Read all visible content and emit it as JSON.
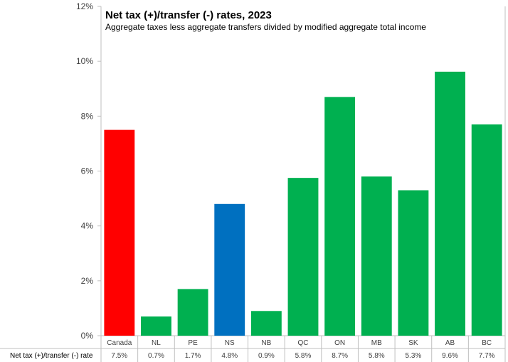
{
  "chart_data": {
    "type": "bar",
    "title": "Net tax (+)/transfer (-) rates, 2023",
    "subtitle": "Aggregate taxes less aggregate transfers divided by modified aggregate total income",
    "categories": [
      "Canada",
      "NL",
      "PE",
      "NS",
      "NB",
      "QC",
      "ON",
      "MB",
      "SK",
      "AB",
      "BC"
    ],
    "values": [
      7.5,
      0.7,
      1.7,
      4.8,
      0.9,
      5.75,
      8.7,
      5.8,
      5.3,
      9.62,
      7.7
    ],
    "value_labels": [
      "7.5%",
      "0.7%",
      "1.7%",
      "4.8%",
      "0.9%",
      "5.8%",
      "8.7%",
      "5.8%",
      "5.3%",
      "9.6%",
      "7.7%"
    ],
    "table_row_label": "Net tax (+)/transfer (-) rate",
    "ylim": [
      0,
      12
    ],
    "yticks": [
      0,
      2,
      4,
      6,
      8,
      10,
      12
    ],
    "ytick_labels": [
      "0%",
      "2%",
      "4%",
      "6%",
      "8%",
      "10%",
      "12%"
    ],
    "xlabel": "",
    "ylabel": "",
    "grid": false,
    "colors": {
      "default": "#00B050",
      "Canada": "#FF0000",
      "NS": "#0070C0",
      "axis": "#BFBFBF"
    }
  }
}
